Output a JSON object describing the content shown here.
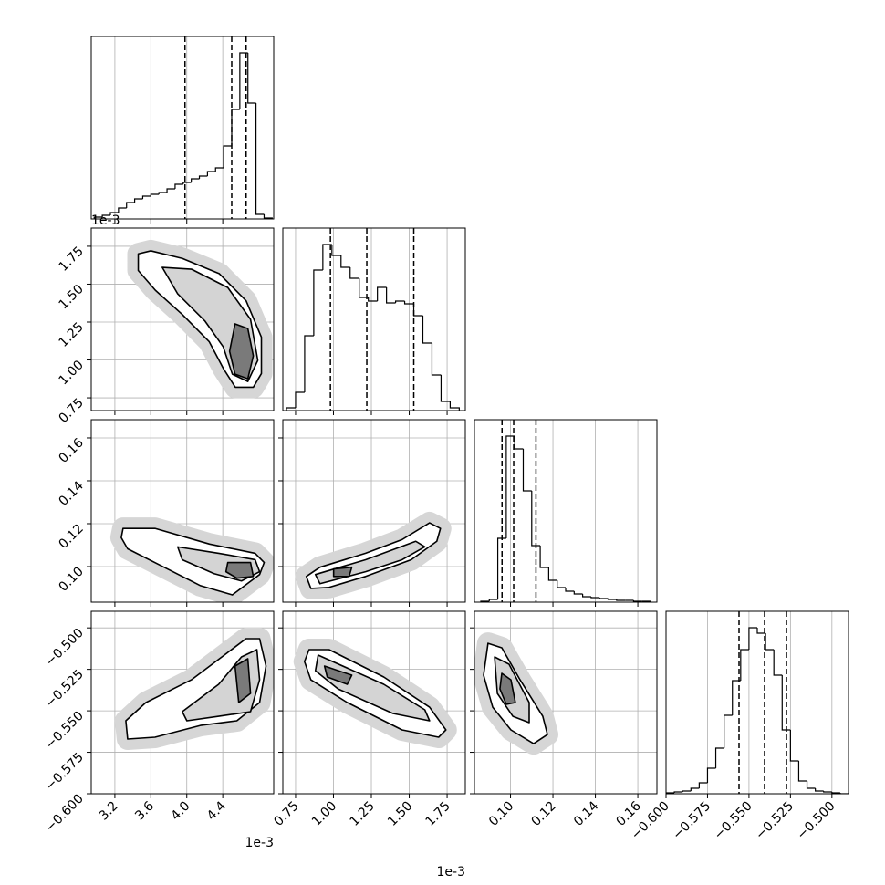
{
  "chart_data": [
    {
      "type": "histogram",
      "xlim": [
        2.937,
        4.967
      ],
      "ylim": [
        0,
        2000
      ],
      "color": "#000000",
      "bins": [
        2.97,
        3.06,
        3.15,
        3.24,
        3.33,
        3.42,
        3.51,
        3.6,
        3.69,
        3.78,
        3.87,
        3.96,
        4.05,
        4.14,
        4.23,
        4.32,
        4.41,
        4.5,
        4.59,
        4.68,
        4.77,
        4.86,
        4.95
      ],
      "values": [
        20,
        40,
        70,
        120,
        180,
        220,
        250,
        270,
        290,
        330,
        380,
        400,
        440,
        470,
        520,
        560,
        800,
        1200,
        1820,
        1270,
        50,
        10
      ],
      "quantiles": [
        3.98,
        4.5,
        4.66
      ]
    },
    {
      "type": "contour",
      "xlim": [
        2.937,
        4.967
      ],
      "ylim": [
        0.666,
        1.87
      ],
      "yticks": [
        0.75,
        {
          "value": 1,
          "label": "1.00"
        },
        1.25,
        {
          "value": 1.5,
          "label": "1.50"
        },
        1.75
      ],
      "y_offset_label": "1e-3",
      "series": [
        {
          "color": "#ffffff",
          "x": [
            3.46,
            3.6,
            3.95,
            4.36,
            4.66,
            4.83,
            4.83,
            4.74,
            4.54,
            4.41,
            4.25,
            3.95,
            3.65,
            3.46
          ],
          "values": [
            1.7,
            1.72,
            1.67,
            1.57,
            1.39,
            1.15,
            0.91,
            0.82,
            0.82,
            0.94,
            1.12,
            1.3,
            1.46,
            1.59
          ]
        },
        {
          "color": "#d4d4d4",
          "x": [
            3.727,
            4.051,
            4.456,
            4.709,
            4.79,
            4.679,
            4.507,
            4.405,
            4.203,
            3.899
          ],
          "values": [
            1.611,
            1.599,
            1.478,
            1.268,
            0.997,
            0.858,
            0.906,
            1.087,
            1.256,
            1.436
          ]
        },
        {
          "color": "#7a7a7a",
          "x": [
            4.537,
            4.679,
            4.74,
            4.679,
            4.537,
            4.476
          ],
          "values": [
            1.238,
            1.207,
            1.027,
            0.876,
            0.906,
            1.057
          ]
        }
      ]
    },
    {
      "type": "histogram",
      "xlim": [
        0.666,
        1.87
      ],
      "ylim": [
        0,
        2000
      ],
      "color": "#000000",
      "bins": [
        0.69,
        0.75,
        0.81,
        0.87,
        0.93,
        0.99,
        1.05,
        1.11,
        1.17,
        1.23,
        1.29,
        1.35,
        1.41,
        1.47,
        1.53,
        1.59,
        1.65,
        1.71,
        1.77,
        1.83
      ],
      "values": [
        30,
        200,
        820,
        1540,
        1820,
        1700,
        1570,
        1450,
        1240,
        1200,
        1350,
        1180,
        1200,
        1170,
        1040,
        740,
        390,
        100,
        30
      ],
      "quantiles": [
        0.98,
        1.22,
        1.53
      ]
    },
    {
      "type": "contour",
      "xlim": [
        2.937,
        4.967
      ],
      "ylim": [
        0.0834,
        0.1685
      ],
      "yticks": [
        {
          "value": 0.1,
          "label": "0.10"
        },
        0.12,
        0.14,
        0.16
      ],
      "series": [
        {
          "color": "#ffffff",
          "x": [
            3.291,
            3.646,
            4.253,
            4.76,
            4.861,
            4.81,
            4.507,
            4.152,
            3.747,
            3.342,
            3.271
          ],
          "values": [
            0.1178,
            0.1178,
            0.1105,
            0.1062,
            0.1019,
            0.0963,
            0.0868,
            0.0911,
            0.0997,
            0.1083,
            0.1135
          ]
        },
        {
          "color": "#d4d4d4",
          "x": [
            3.899,
            4.355,
            4.76,
            4.81,
            4.608,
            4.304,
            3.95
          ],
          "values": [
            0.1092,
            0.1062,
            0.1032,
            0.0976,
            0.0933,
            0.0967,
            0.1032
          ]
        },
        {
          "color": "#7a7a7a",
          "x": [
            4.456,
            4.709,
            4.74,
            4.558,
            4.436
          ],
          "values": [
            0.1019,
            0.1019,
            0.0954,
            0.0946,
            0.0976
          ]
        }
      ]
    },
    {
      "type": "contour",
      "xlim": [
        0.666,
        1.87
      ],
      "ylim": [
        0.0834,
        0.1685
      ],
      "series": [
        {
          "color": "#ffffff",
          "x": [
            0.821,
            0.911,
            1.212,
            1.453,
            1.634,
            1.706,
            1.682,
            1.513,
            1.212,
            0.971,
            0.851
          ],
          "values": [
            0.0954,
            0.0997,
            0.1062,
            0.1126,
            0.1204,
            0.1178,
            0.1118,
            0.1032,
            0.0954,
            0.0903,
            0.0898
          ]
        },
        {
          "color": "#d4d4d4",
          "x": [
            0.881,
            1.212,
            1.543,
            1.603,
            1.453,
            1.212,
            0.911
          ],
          "values": [
            0.0963,
            0.1032,
            0.1118,
            0.1092,
            0.1032,
            0.0976,
            0.092
          ]
        },
        {
          "color": "#7a7a7a",
          "x": [
            1.001,
            1.121,
            1.103,
            1.001
          ],
          "values": [
            0.0989,
            0.0997,
            0.0954,
            0.0954
          ]
        }
      ]
    },
    {
      "type": "histogram",
      "xlim": [
        0.083,
        0.169
      ],
      "ylim": [
        0,
        2000
      ],
      "color": "#000000",
      "bins": [
        0.086,
        0.09,
        0.094,
        0.098,
        0.102,
        0.106,
        0.11,
        0.114,
        0.118,
        0.122,
        0.126,
        0.13,
        0.134,
        0.138,
        0.142,
        0.146,
        0.15,
        0.154,
        0.158,
        0.162,
        0.166
      ],
      "values": [
        10,
        30,
        700,
        1820,
        1680,
        1220,
        620,
        380,
        240,
        160,
        120,
        90,
        60,
        50,
        40,
        30,
        20,
        20,
        10,
        10
      ],
      "quantiles": [
        0.096,
        0.1015,
        0.112
      ]
    },
    {
      "type": "contour",
      "xlim": [
        2.937,
        4.967
      ],
      "ylim": [
        -0.6,
        -0.49
      ],
      "xticks": [
        3.2,
        3.6,
        {
          "value": 4,
          "label": "4.0"
        },
        4.4
      ],
      "x_offset_label": "1e-3",
      "yticks": [
        {
          "value": -0.6,
          "label": "−0.600"
        },
        {
          "value": -0.575,
          "label": "−0.575"
        },
        {
          "value": -0.55,
          "label": "−0.550"
        },
        {
          "value": -0.525,
          "label": "−0.525"
        },
        {
          "value": -0.5,
          "label": "−0.500"
        }
      ],
      "series": [
        {
          "color": "#ffffff",
          "x": [
            3.322,
            3.545,
            4.051,
            4.456,
            4.659,
            4.81,
            4.881,
            4.81,
            4.557,
            4.152,
            3.646,
            3.342
          ],
          "values": [
            -0.556,
            -0.545,
            -0.5313,
            -0.5148,
            -0.5065,
            -0.5065,
            -0.523,
            -0.545,
            -0.556,
            -0.5588,
            -0.5659,
            -0.567
          ]
        },
        {
          "color": "#d4d4d4",
          "x": [
            3.95,
            4.355,
            4.608,
            4.78,
            4.81,
            4.709,
            4.355,
            4.001
          ],
          "values": [
            -0.5505,
            -0.534,
            -0.5175,
            -0.5131,
            -0.5313,
            -0.5505,
            -0.5533,
            -0.556
          ]
        },
        {
          "color": "#7a7a7a",
          "x": [
            4.537,
            4.679,
            4.709,
            4.578
          ],
          "values": [
            -0.523,
            -0.5186,
            -0.5395,
            -0.545
          ]
        }
      ]
    },
    {
      "type": "contour",
      "xlim": [
        0.666,
        1.87
      ],
      "ylim": [
        -0.6,
        -0.49
      ],
      "xticks": [
        0.75,
        {
          "value": 1,
          "label": "1.00"
        },
        1.25,
        {
          "value": 1.5,
          "label": "1.50"
        },
        1.75
      ],
      "x_offset_label": "1e-3",
      "series": [
        {
          "color": "#ffffff",
          "x": [
            0.839,
            0.971,
            1.332,
            1.634,
            1.742,
            1.694,
            1.453,
            1.091,
            0.851,
            0.809
          ],
          "values": [
            -0.5131,
            -0.5131,
            -0.5296,
            -0.5478,
            -0.5615,
            -0.5659,
            -0.5615,
            -0.545,
            -0.5313,
            -0.5203
          ]
        },
        {
          "color": "#d4d4d4",
          "x": [
            0.899,
            1.332,
            1.603,
            1.634,
            1.393,
            1.031,
            0.881
          ],
          "values": [
            -0.5164,
            -0.534,
            -0.5494,
            -0.556,
            -0.5516,
            -0.5368,
            -0.5258
          ]
        },
        {
          "color": "#7a7a7a",
          "x": [
            0.941,
            1.121,
            1.091,
            0.959
          ],
          "values": [
            -0.523,
            -0.5285,
            -0.534,
            -0.5296
          ]
        }
      ]
    },
    {
      "type": "contour",
      "xlim": [
        0.083,
        0.169
      ],
      "ylim": [
        -0.6,
        -0.49
      ],
      "xticks": [
        {
          "value": 0.1,
          "label": "0.10"
        },
        0.12,
        0.14,
        0.16
      ],
      "series": [
        {
          "color": "#ffffff",
          "x": [
            0.0894,
            0.0959,
            0.1045,
            0.1152,
            0.1174,
            0.1109,
            0.1002,
            0.0916,
            0.0873
          ],
          "values": [
            -0.5093,
            -0.512,
            -0.5313,
            -0.5533,
            -0.5643,
            -0.5698,
            -0.5615,
            -0.5478,
            -0.5285
          ]
        },
        {
          "color": "#d4d4d4",
          "x": [
            0.0925,
            0.0993,
            0.1088,
            0.1088,
            0.1011,
            0.0938
          ],
          "values": [
            -0.5175,
            -0.5219,
            -0.545,
            -0.5571,
            -0.5533,
            -0.5395
          ]
        },
        {
          "color": "#7a7a7a",
          "x": [
            0.0959,
            0.1002,
            0.1023,
            0.098,
            0.095
          ],
          "values": [
            -0.5274,
            -0.5313,
            -0.545,
            -0.5461,
            -0.5368
          ]
        }
      ]
    },
    {
      "type": "histogram",
      "xlim": [
        -0.6,
        -0.49
      ],
      "ylim": [
        0,
        2000
      ],
      "color": "#000000",
      "xticks": [
        {
          "value": -0.6,
          "label": "−0.600"
        },
        {
          "value": -0.575,
          "label": "−0.575"
        },
        {
          "value": -0.55,
          "label": "−0.550"
        },
        {
          "value": -0.525,
          "label": "−0.525"
        },
        {
          "value": -0.5,
          "label": "−0.500"
        }
      ],
      "bins": [
        -0.6,
        -0.595,
        -0.59,
        -0.585,
        -0.58,
        -0.575,
        -0.57,
        -0.565,
        -0.56,
        -0.555,
        -0.55,
        -0.545,
        -0.54,
        -0.535,
        -0.53,
        -0.525,
        -0.52,
        -0.515,
        -0.51,
        -0.505,
        -0.5,
        -0.495,
        -0.49
      ],
      "values": [
        10,
        20,
        30,
        60,
        120,
        280,
        500,
        860,
        1240,
        1580,
        1820,
        1760,
        1580,
        1300,
        700,
        360,
        140,
        60,
        30,
        20,
        10,
        0
      ],
      "quantiles": [
        -0.556,
        -0.5406,
        -0.5274
      ]
    }
  ]
}
